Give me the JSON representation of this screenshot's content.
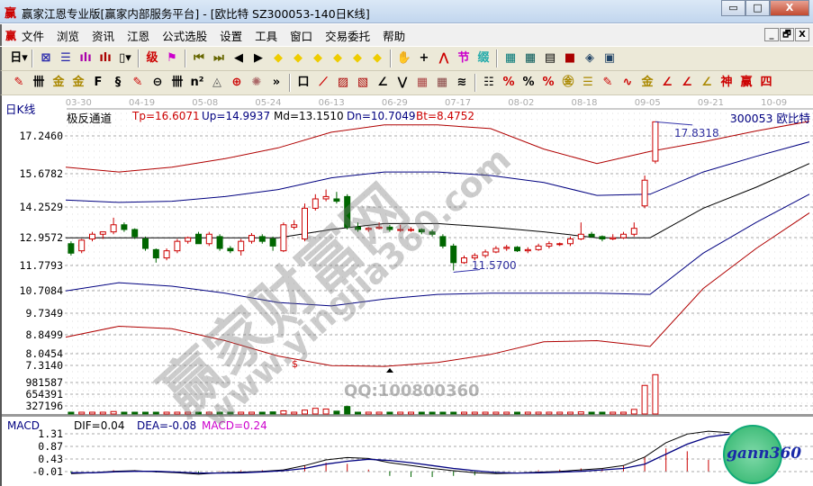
{
  "window": {
    "title": "赢家江恩专业版[赢家内部服务平台] - [欧比特  SZ300053-140日K线]",
    "logo": "赢",
    "minimize": "▭",
    "maximize": "□",
    "close": "X"
  },
  "menu": {
    "logo": "赢",
    "items": [
      "文件",
      "浏览",
      "资讯",
      "江恩",
      "公式选股",
      "设置",
      "工具",
      "窗口",
      "交易委托",
      "帮助"
    ],
    "mdi": [
      "_",
      "🗗",
      "X"
    ]
  },
  "toolbar1": [
    {
      "name": "period-day",
      "glyph": "日▾",
      "color": "#000"
    },
    {
      "name": "sep"
    },
    {
      "name": "chart-icon",
      "glyph": "⊠",
      "color": "#22a"
    },
    {
      "name": "list-icon",
      "glyph": "☰",
      "color": "#22a"
    },
    {
      "name": "bars3-icon",
      "glyph": "ılı",
      "color": "#a0a"
    },
    {
      "name": "bars9-icon",
      "glyph": "ılı",
      "color": "#a00"
    },
    {
      "name": "candle-type-icon",
      "glyph": "▯▾",
      "color": "#000"
    },
    {
      "name": "sep"
    },
    {
      "name": "extreme-icon",
      "glyph": "级",
      "color": "#c00"
    },
    {
      "name": "flag-icon",
      "glyph": "⚑",
      "color": "#c0c"
    },
    {
      "name": "sep"
    },
    {
      "name": "first-icon",
      "glyph": "⏮",
      "color": "#660"
    },
    {
      "name": "last-icon",
      "glyph": "⏭",
      "color": "#660"
    },
    {
      "name": "left-icon",
      "glyph": "◀",
      "color": "#000"
    },
    {
      "name": "right-icon",
      "glyph": "▶",
      "color": "#000"
    },
    {
      "name": "zoom-left-icon",
      "glyph": "◆",
      "color": "#ec0"
    },
    {
      "name": "zoom-right-icon",
      "glyph": "◆",
      "color": "#ec0"
    },
    {
      "name": "zoom-h-icon",
      "glyph": "◆",
      "color": "#ec0"
    },
    {
      "name": "zoom-in-icon",
      "glyph": "◆",
      "color": "#ec0"
    },
    {
      "name": "zoom-all-icon",
      "glyph": "◆",
      "color": "#ec0"
    },
    {
      "name": "zoom-v-icon",
      "glyph": "◆",
      "color": "#ec0"
    },
    {
      "name": "sep"
    },
    {
      "name": "hand-icon",
      "glyph": "✋",
      "color": "#000"
    },
    {
      "name": "crosshair-icon",
      "glyph": "+",
      "color": "#000"
    },
    {
      "name": "polyline-icon",
      "glyph": "⋀",
      "color": "#c00"
    },
    {
      "name": "jie-icon",
      "glyph": "节",
      "color": "#c0c"
    },
    {
      "name": "cycle-icon",
      "glyph": "缀",
      "color": "#2aa"
    },
    {
      "name": "sep"
    },
    {
      "name": "calendar-icon",
      "glyph": "▦",
      "color": "#077"
    },
    {
      "name": "calculator-icon",
      "glyph": "▦",
      "color": "#055"
    },
    {
      "name": "notes-icon",
      "glyph": "▤",
      "color": "#000"
    },
    {
      "name": "save-icon",
      "glyph": "■",
      "color": "#a00"
    },
    {
      "name": "network-icon",
      "glyph": "◈",
      "color": "#246"
    },
    {
      "name": "trade-icon",
      "glyph": "▣",
      "color": "#246"
    }
  ],
  "toolbar2": [
    {
      "name": "pen-icon",
      "glyph": "✎",
      "color": "#c00"
    },
    {
      "name": "grid-icon",
      "glyph": "卌",
      "color": "#000"
    },
    {
      "name": "gold1-icon",
      "glyph": "金",
      "color": "#a80"
    },
    {
      "name": "gold2-icon",
      "glyph": "金",
      "color": "#a80"
    },
    {
      "name": "f-icon",
      "glyph": "F",
      "color": "#000"
    },
    {
      "name": "spiral-icon",
      "glyph": "§",
      "color": "#000"
    },
    {
      "name": "ruler-pen-icon",
      "glyph": "✎",
      "color": "#c00"
    },
    {
      "name": "circle-scale-icon",
      "glyph": "⊖",
      "color": "#000"
    },
    {
      "name": "lines-icon",
      "glyph": "卌",
      "color": "#000"
    },
    {
      "name": "n2-icon",
      "glyph": "n²",
      "color": "#000"
    },
    {
      "name": "triangle-icon",
      "glyph": "◬",
      "color": "#555"
    },
    {
      "name": "target-icon",
      "glyph": "⊕",
      "color": "#c00"
    },
    {
      "name": "star-icon",
      "glyph": "✺",
      "color": "#a66"
    },
    {
      "name": "more-icon",
      "glyph": "»",
      "color": "#000"
    },
    {
      "name": "sep"
    },
    {
      "name": "box-icon",
      "glyph": "口",
      "color": "#000"
    },
    {
      "name": "fan-icon",
      "glyph": "⟋",
      "color": "#c00"
    },
    {
      "name": "box-fan-icon",
      "glyph": "▨",
      "color": "#a00"
    },
    {
      "name": "square-fan-icon",
      "glyph": "▧",
      "color": "#a00"
    },
    {
      "name": "angle-icon",
      "glyph": "∠",
      "color": "#000"
    },
    {
      "name": "zigzag-icon",
      "glyph": "⋁",
      "color": "#000"
    },
    {
      "name": "grid-box-icon",
      "glyph": "▦",
      "color": "#a44"
    },
    {
      "name": "grid-box2-icon",
      "glyph": "▦",
      "color": "#844"
    },
    {
      "name": "parallel-icon",
      "glyph": "≋",
      "color": "#000"
    },
    {
      "name": "sep"
    },
    {
      "name": "ladder-icon",
      "glyph": "☷",
      "color": "#000"
    },
    {
      "name": "pct-fan-icon",
      "glyph": "%",
      "color": "#c00"
    },
    {
      "name": "percent-icon",
      "glyph": "%",
      "color": "#000"
    },
    {
      "name": "pct-lines-icon",
      "glyph": "%",
      "color": "#c00"
    },
    {
      "name": "gold-circle-icon",
      "glyph": "㊎",
      "color": "#a80"
    },
    {
      "name": "gold-lines-icon",
      "glyph": "☰",
      "color": "#a80"
    },
    {
      "name": "pen-scale-icon",
      "glyph": "✎",
      "color": "#c00"
    },
    {
      "name": "wave-icon",
      "glyph": "∿",
      "color": "#c00"
    },
    {
      "name": "gold-box-icon",
      "glyph": "金",
      "color": "#a80"
    },
    {
      "name": "j-angle-icon",
      "glyph": "∠",
      "color": "#c00"
    },
    {
      "name": "f-angle-icon",
      "glyph": "∠",
      "color": "#c00"
    },
    {
      "name": "gold-angle-icon",
      "glyph": "∠",
      "color": "#a80"
    },
    {
      "name": "shen-angle-icon",
      "glyph": "神",
      "color": "#c00"
    },
    {
      "name": "ying-angle-icon",
      "glyph": "赢",
      "color": "#c00"
    },
    {
      "name": "four-angle-icon",
      "glyph": "四",
      "color": "#c00"
    }
  ],
  "chart_label": "日K线",
  "indicator": {
    "name": "极反通道",
    "tp": "Tp=16.6071",
    "up": "Up=14.9937",
    "md": "Md=13.1510",
    "dn": "Dn=10.7049",
    "bt": "Bt=8.4752",
    "stock": "300053 欧比特"
  },
  "colors": {
    "up": "#cc0000",
    "down": "#006600",
    "tp": "#b00000",
    "upband": "#000080",
    "md": "#000000",
    "dnband": "#000080",
    "bt": "#b00000",
    "dif": "#000000",
    "dea": "#000080",
    "macd_pos": "#cc0000",
    "macd_neg": "#006600"
  },
  "watermark": {
    "qq": "QQ:100800360",
    "brand": "赢家财富网",
    "site": "www.yingjia360.com",
    "logo": "gann360"
  },
  "chart_data": {
    "type": "candlestick",
    "x_ticks": [
      "03-30",
      "04-19",
      "05-08",
      "05-24",
      "06-13",
      "06-29",
      "07-17",
      "08-02",
      "08-18",
      "09-05",
      "09-21",
      "10-09"
    ],
    "price_ticks": [
      17.246,
      15.6782,
      14.2529,
      12.9572,
      11.7793,
      10.7084,
      9.7349,
      8.8499,
      8.0454,
      7.314
    ],
    "price_tick_labels": [
      "17.2460",
      "15.6782",
      "14.2529",
      "12.9572",
      "11.7793",
      "10.7084",
      "9.7349",
      "8.8499",
      "8.0454",
      "7.3140"
    ],
    "candles": [
      [
        12.7,
        12.8,
        12.2,
        12.3
      ],
      [
        12.4,
        12.9,
        12.3,
        12.85
      ],
      [
        12.9,
        13.2,
        12.8,
        13.1
      ],
      [
        13.1,
        13.2,
        12.9,
        13.2
      ],
      [
        13.2,
        13.8,
        13.1,
        13.5
      ],
      [
        13.5,
        13.6,
        13.2,
        13.3
      ],
      [
        13.3,
        13.35,
        12.9,
        13.0
      ],
      [
        12.9,
        13.0,
        12.4,
        12.5
      ],
      [
        12.45,
        12.5,
        11.9,
        12.1
      ],
      [
        12.1,
        12.5,
        12.0,
        12.4
      ],
      [
        12.4,
        12.9,
        12.3,
        12.8
      ],
      [
        12.8,
        13.0,
        12.7,
        12.95
      ],
      [
        13.1,
        13.2,
        12.7,
        12.7
      ],
      [
        12.7,
        13.2,
        12.6,
        13.1
      ],
      [
        13.0,
        13.1,
        12.4,
        12.5
      ],
      [
        12.5,
        12.6,
        12.3,
        12.4
      ],
      [
        12.4,
        12.9,
        12.2,
        12.8
      ],
      [
        12.8,
        13.15,
        12.7,
        13.05
      ],
      [
        13.0,
        13.1,
        12.7,
        12.8
      ],
      [
        12.9,
        13.0,
        12.4,
        12.6
      ],
      [
        12.4,
        13.6,
        12.35,
        13.5
      ],
      [
        13.4,
        13.7,
        13.3,
        13.5
      ],
      [
        12.9,
        14.4,
        12.8,
        14.2
      ],
      [
        14.2,
        14.8,
        14.1,
        14.6
      ],
      [
        14.6,
        15.0,
        14.5,
        14.7
      ],
      [
        14.6,
        14.9,
        14.4,
        14.5
      ],
      [
        14.7,
        14.8,
        13.3,
        13.4
      ],
      [
        13.4,
        13.6,
        13.2,
        13.3
      ],
      [
        13.3,
        13.4,
        13.2,
        13.35
      ],
      [
        13.35,
        13.6,
        13.3,
        13.4
      ],
      [
        13.4,
        13.5,
        13.2,
        13.3
      ],
      [
        13.3,
        13.5,
        13.2,
        13.3
      ],
      [
        13.3,
        13.4,
        13.2,
        13.3
      ],
      [
        13.3,
        13.35,
        13.1,
        13.2
      ],
      [
        13.2,
        13.3,
        13.0,
        13.1
      ],
      [
        13.0,
        13.1,
        12.5,
        12.6
      ],
      [
        12.6,
        12.7,
        11.57,
        11.9
      ],
      [
        11.9,
        12.2,
        11.85,
        12.1
      ],
      [
        12.1,
        12.3,
        12.0,
        12.2
      ],
      [
        12.2,
        12.45,
        12.1,
        12.35
      ],
      [
        12.35,
        12.6,
        12.3,
        12.5
      ],
      [
        12.5,
        12.65,
        12.4,
        12.55
      ],
      [
        12.55,
        12.6,
        12.35,
        12.4
      ],
      [
        12.4,
        12.55,
        12.3,
        12.45
      ],
      [
        12.45,
        12.7,
        12.4,
        12.6
      ],
      [
        12.6,
        12.8,
        12.5,
        12.7
      ],
      [
        12.7,
        12.75,
        12.6,
        12.7
      ],
      [
        12.7,
        13.0,
        12.6,
        12.9
      ],
      [
        12.9,
        13.6,
        12.85,
        13.1
      ],
      [
        13.1,
        13.2,
        12.95,
        13.0
      ],
      [
        13.0,
        13.05,
        12.8,
        12.9
      ],
      [
        12.9,
        13.1,
        12.85,
        12.95
      ],
      [
        12.95,
        13.2,
        12.9,
        13.1
      ],
      [
        13.1,
        13.6,
        13.0,
        13.35
      ],
      [
        14.3,
        15.6,
        14.2,
        15.4
      ],
      [
        16.2,
        17.83,
        16.1,
        17.83
      ]
    ],
    "volume_ticks": [
      981587,
      654391,
      327196
    ],
    "volume": [
      90000,
      110000,
      80000,
      140000,
      170000,
      90000,
      120000,
      70000,
      60000,
      70000,
      100000,
      80000,
      150000,
      120000,
      110000,
      90000,
      130000,
      110000,
      120000,
      160000,
      190000,
      150000,
      210000,
      260000,
      240000,
      180000,
      310000,
      120000,
      110000,
      100000,
      90000,
      100000,
      80000,
      90000,
      90000,
      120000,
      150000,
      100000,
      80000,
      90000,
      100000,
      110000,
      90000,
      100000,
      120000,
      130000,
      100000,
      140000,
      160000,
      110000,
      100000,
      120000,
      150000,
      230000,
      900000,
      1200000
    ],
    "annotations": {
      "high": "17.8318",
      "low": "11.5700",
      "marker": "$"
    },
    "bands": {
      "tp": [
        15.95,
        15.75,
        15.95,
        16.3,
        16.75,
        17.4,
        17.7,
        17.7,
        17.55,
        16.7,
        16.1,
        16.6,
        17.0,
        17.45,
        17.85
      ],
      "up": [
        14.55,
        14.45,
        14.5,
        14.7,
        15.0,
        15.5,
        15.75,
        15.75,
        15.6,
        15.3,
        14.75,
        14.8,
        15.75,
        16.4,
        17.0
      ],
      "md": [
        12.95,
        12.95,
        12.95,
        12.95,
        12.95,
        13.3,
        13.55,
        13.55,
        13.4,
        13.2,
        12.95,
        12.95,
        14.2,
        15.1,
        16.1
      ],
      "dn": [
        10.7,
        11.05,
        10.9,
        10.6,
        10.2,
        10.05,
        10.35,
        10.55,
        10.6,
        10.6,
        10.6,
        10.55,
        12.3,
        13.6,
        14.8
      ],
      "bt": [
        8.75,
        9.2,
        9.1,
        8.6,
        7.9,
        7.3,
        7.25,
        7.5,
        8.0,
        8.55,
        8.6,
        8.35,
        10.8,
        12.5,
        14.0
      ]
    },
    "macd": {
      "label": "MACD",
      "dif_label": "DIF=0.04",
      "dea_label": "DEA=-0.08",
      "macd_label": "MACD=0.24",
      "ticks": [
        1.31,
        0.87,
        0.43,
        -0.01
      ],
      "tick_labels": [
        "1.31",
        "0.87",
        "0.43",
        "-0.01"
      ],
      "dif": [
        -0.08,
        -0.05,
        0.0,
        0.02,
        -0.02,
        -0.05,
        -0.1,
        -0.05,
        -0.03,
        0.0,
        0.05,
        0.2,
        0.4,
        0.48,
        0.45,
        0.3,
        0.2,
        0.1,
        0.02,
        -0.05,
        -0.08,
        -0.06,
        -0.03,
        0.0,
        0.05,
        0.1,
        0.2,
        0.5,
        1.0,
        1.3,
        1.4,
        1.35
      ],
      "dea": [
        -0.05,
        -0.05,
        -0.02,
        0.0,
        0.0,
        -0.03,
        -0.06,
        -0.06,
        -0.05,
        -0.02,
        0.02,
        0.1,
        0.25,
        0.35,
        0.42,
        0.38,
        0.3,
        0.2,
        0.1,
        0.02,
        -0.04,
        -0.06,
        -0.05,
        -0.03,
        0.0,
        0.05,
        0.1,
        0.25,
        0.6,
        0.95,
        1.2,
        1.3
      ]
    }
  }
}
